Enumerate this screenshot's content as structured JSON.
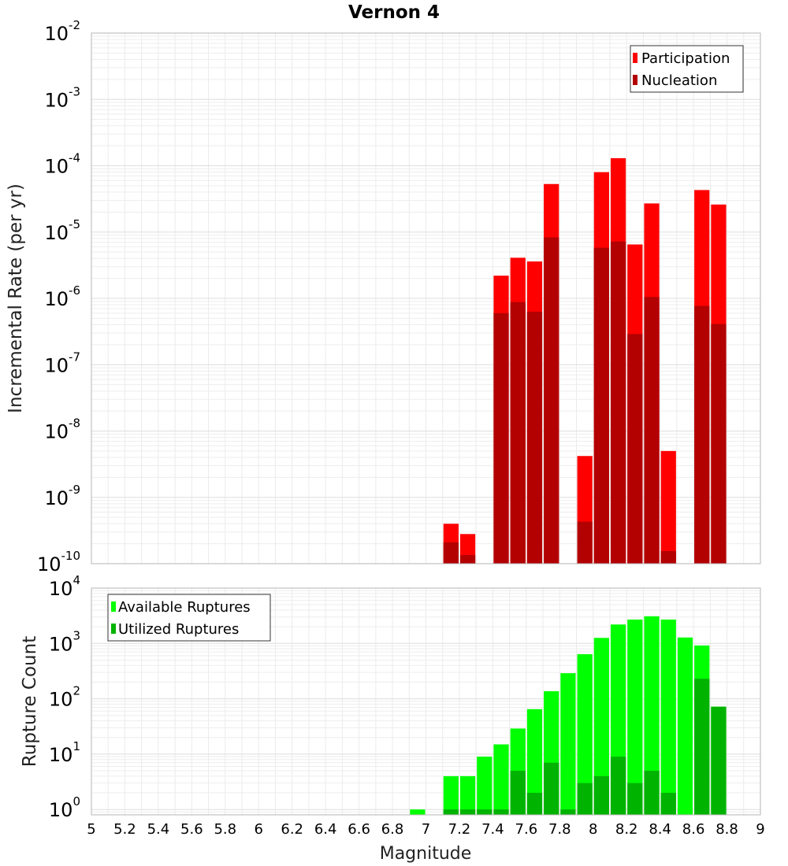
{
  "chart_data": [
    {
      "type": "bar",
      "title": "Vernon 4",
      "xlabel": "Magnitude",
      "ylabel": "Incremental Rate (per yr)",
      "yscale": "log",
      "ylim": [
        1e-10,
        0.01
      ],
      "xlim": [
        5,
        9
      ],
      "x_ticks": [
        "5",
        "5.2",
        "5.4",
        "5.6",
        "5.8",
        "6",
        "6.2",
        "6.4",
        "6.6",
        "6.8",
        "7",
        "7.2",
        "7.4",
        "7.6",
        "7.8",
        "8",
        "8.2",
        "8.4",
        "8.6",
        "8.8",
        "9"
      ],
      "y_ticks": [
        {
          "base": "10",
          "exp": "-2"
        },
        {
          "base": "10",
          "exp": "-3"
        },
        {
          "base": "10",
          "exp": "-4"
        },
        {
          "base": "10",
          "exp": "-5"
        },
        {
          "base": "10",
          "exp": "-6"
        },
        {
          "base": "10",
          "exp": "-7"
        },
        {
          "base": "10",
          "exp": "-8"
        },
        {
          "base": "10",
          "exp": "-9"
        },
        {
          "base": "10",
          "exp": "-10"
        }
      ],
      "grid": true,
      "legend_position": "top-right",
      "series": [
        {
          "name": "Participation",
          "color": "#ff0000",
          "points": [
            {
              "x": 7.15,
              "y": 4e-10
            },
            {
              "x": 7.25,
              "y": 2.8e-10
            },
            {
              "x": 7.45,
              "y": 2.2e-06
            },
            {
              "x": 7.55,
              "y": 4.1e-06
            },
            {
              "x": 7.65,
              "y": 3.6e-06
            },
            {
              "x": 7.75,
              "y": 5.3e-05
            },
            {
              "x": 7.95,
              "y": 4.2e-09
            },
            {
              "x": 8.05,
              "y": 8e-05
            },
            {
              "x": 8.15,
              "y": 0.00013
            },
            {
              "x": 8.25,
              "y": 6.5e-06
            },
            {
              "x": 8.35,
              "y": 2.7e-05
            },
            {
              "x": 8.45,
              "y": 5e-09
            },
            {
              "x": 8.65,
              "y": 4.3e-05
            },
            {
              "x": 8.75,
              "y": 2.6e-05
            }
          ]
        },
        {
          "name": "Nucleation",
          "color": "#b30000",
          "points": [
            {
              "x": 7.15,
              "y": 2.1e-10
            },
            {
              "x": 7.25,
              "y": 1.35e-10
            },
            {
              "x": 7.45,
              "y": 6e-07
            },
            {
              "x": 7.55,
              "y": 8.8e-07
            },
            {
              "x": 7.65,
              "y": 6.3e-07
            },
            {
              "x": 7.75,
              "y": 8.3e-06
            },
            {
              "x": 7.95,
              "y": 4.3e-10
            },
            {
              "x": 8.05,
              "y": 5.8e-06
            },
            {
              "x": 8.15,
              "y": 7.2e-06
            },
            {
              "x": 8.25,
              "y": 2.9e-07
            },
            {
              "x": 8.35,
              "y": 1.05e-06
            },
            {
              "x": 8.45,
              "y": 1.55e-10
            },
            {
              "x": 8.65,
              "y": 7.7e-07
            },
            {
              "x": 8.75,
              "y": 4.1e-07
            }
          ]
        }
      ]
    },
    {
      "type": "bar",
      "title": "",
      "xlabel": "Magnitude",
      "ylabel": "Rupture Count",
      "yscale": "log",
      "ylim": [
        0.8,
        10000
      ],
      "xlim": [
        5,
        9
      ],
      "x_ticks": [
        "5",
        "5.2",
        "5.4",
        "5.6",
        "5.8",
        "6",
        "6.2",
        "6.4",
        "6.6",
        "6.8",
        "7",
        "7.2",
        "7.4",
        "7.6",
        "7.8",
        "8",
        "8.2",
        "8.4",
        "8.6",
        "8.8",
        "9"
      ],
      "y_ticks": [
        {
          "base": "10",
          "exp": "4"
        },
        {
          "base": "10",
          "exp": "3"
        },
        {
          "base": "10",
          "exp": "2"
        },
        {
          "base": "10",
          "exp": "1"
        },
        {
          "base": "10",
          "exp": "0"
        }
      ],
      "grid": true,
      "legend_position": "top-left",
      "series": [
        {
          "name": "Available Ruptures",
          "color": "#00ff00",
          "points": [
            {
              "x": 6.95,
              "y": 1
            },
            {
              "x": 7.15,
              "y": 4
            },
            {
              "x": 7.25,
              "y": 4
            },
            {
              "x": 7.35,
              "y": 9
            },
            {
              "x": 7.45,
              "y": 15
            },
            {
              "x": 7.55,
              "y": 29
            },
            {
              "x": 7.65,
              "y": 65
            },
            {
              "x": 7.75,
              "y": 137
            },
            {
              "x": 7.85,
              "y": 290
            },
            {
              "x": 7.95,
              "y": 640
            },
            {
              "x": 8.05,
              "y": 1260
            },
            {
              "x": 8.15,
              "y": 2200
            },
            {
              "x": 8.25,
              "y": 2700
            },
            {
              "x": 8.35,
              "y": 3100
            },
            {
              "x": 8.45,
              "y": 2700
            },
            {
              "x": 8.55,
              "y": 1280
            },
            {
              "x": 8.65,
              "y": 920
            },
            {
              "x": 8.75,
              "y": 72
            }
          ]
        },
        {
          "name": "Utilized Ruptures",
          "color": "#00b300",
          "points": [
            {
              "x": 7.15,
              "y": 1
            },
            {
              "x": 7.25,
              "y": 1
            },
            {
              "x": 7.35,
              "y": 1
            },
            {
              "x": 7.45,
              "y": 1
            },
            {
              "x": 7.55,
              "y": 5
            },
            {
              "x": 7.65,
              "y": 2
            },
            {
              "x": 7.75,
              "y": 7
            },
            {
              "x": 7.85,
              "y": 1
            },
            {
              "x": 7.95,
              "y": 3
            },
            {
              "x": 8.05,
              "y": 4
            },
            {
              "x": 8.15,
              "y": 9
            },
            {
              "x": 8.25,
              "y": 3
            },
            {
              "x": 8.35,
              "y": 5
            },
            {
              "x": 8.45,
              "y": 2
            },
            {
              "x": 8.65,
              "y": 230
            },
            {
              "x": 8.75,
              "y": 72
            }
          ]
        }
      ]
    }
  ]
}
